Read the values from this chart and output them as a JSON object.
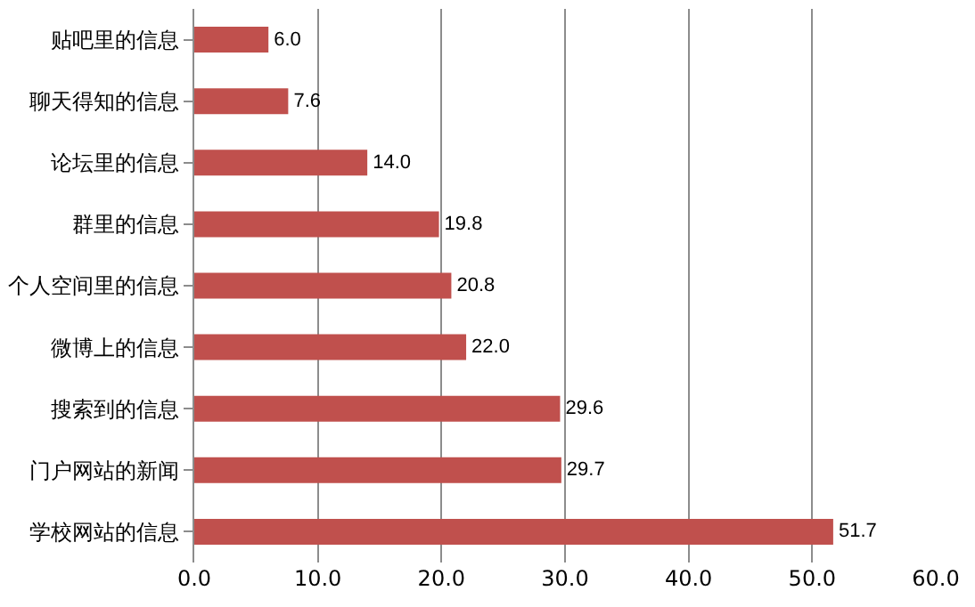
{
  "chart_data": {
    "type": "bar",
    "orientation": "horizontal",
    "categories": [
      "贴吧里的信息",
      "聊天得知的信息",
      "论坛里的信息",
      "群里的信息",
      "个人空间里的信息",
      "微博上的信息",
      "搜索到的信息",
      "门户网站的新闻",
      "学校网站的信息"
    ],
    "values": [
      6.0,
      7.6,
      14.0,
      19.8,
      20.8,
      22.0,
      29.6,
      29.7,
      51.7
    ],
    "value_labels": [
      "6.0",
      "7.6",
      "14.0",
      "19.8",
      "20.8",
      "22.0",
      "29.6",
      "29.7",
      "51.7"
    ],
    "color": "#c0504d",
    "xlim": [
      0,
      60
    ],
    "xticks": [
      {
        "value": 0,
        "label": "0.0"
      },
      {
        "value": 10,
        "label": "10.0"
      },
      {
        "value": 20,
        "label": "20.0"
      },
      {
        "value": 30,
        "label": "30.0"
      },
      {
        "value": 40,
        "label": "40.0"
      },
      {
        "value": 50,
        "label": "50.0"
      },
      {
        "value": 60,
        "label": "60.0"
      }
    ],
    "grid": "x"
  }
}
